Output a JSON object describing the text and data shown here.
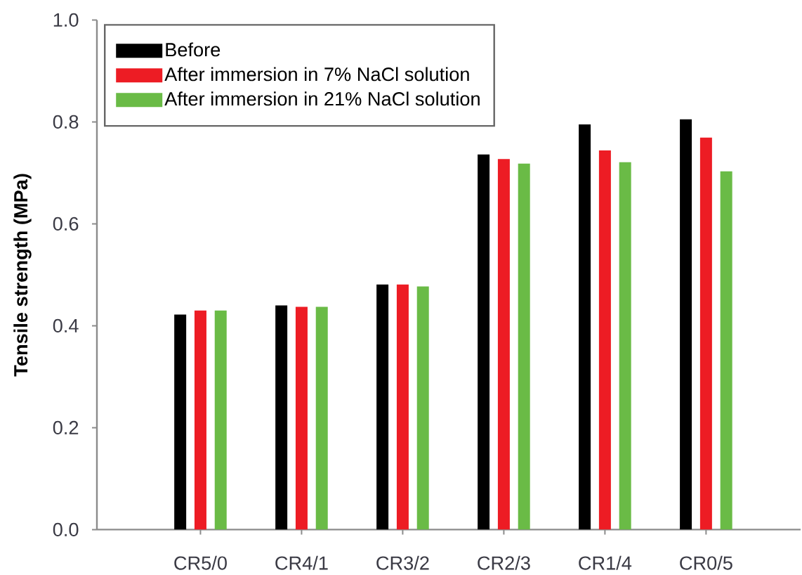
{
  "chart_data": {
    "type": "bar",
    "ylabel": "Tensile strength (MPa)",
    "categories": [
      "CR5/0",
      "CR4/1",
      "CR3/2",
      "CR2/3",
      "CR1/4",
      "CR0/5"
    ],
    "series": [
      {
        "name": "Before",
        "color": "#000000",
        "values": [
          0.422,
          0.44,
          0.481,
          0.736,
          0.795,
          0.805
        ]
      },
      {
        "name": "After immersion in 7% NaCl solution",
        "color": "#ed1c24",
        "values": [
          0.43,
          0.437,
          0.481,
          0.727,
          0.744,
          0.769
        ]
      },
      {
        "name": "After immersion in 21% NaCl solution",
        "color": "#6abb46",
        "values": [
          0.43,
          0.437,
          0.477,
          0.718,
          0.721,
          0.703
        ]
      }
    ],
    "ylim": [
      0,
      1.0
    ],
    "yticks": [
      {
        "value": 0,
        "label": "0.0"
      },
      0.2,
      0.4,
      0.6,
      0.8,
      {
        "value": 1.0,
        "label": "1.0"
      }
    ],
    "legend": "top left",
    "grid": false
  }
}
